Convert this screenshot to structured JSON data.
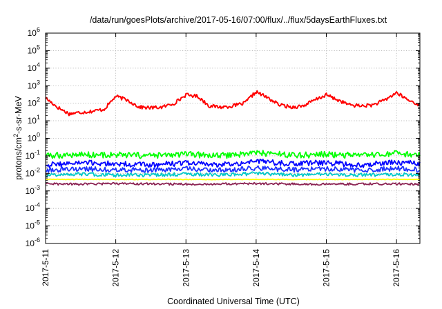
{
  "chart_data": {
    "type": "line",
    "title": "/data/run/goesPlots/archive/2017-05-16/07:00/flux/../flux/5daysEarthFluxes.txt",
    "xlabel": "Coordinated Universal Time (UTC)",
    "ylabel": {
      "pre": "protons/cm",
      "sup": "2",
      "post": "-s-sr-MeV"
    },
    "x_scale": "time",
    "xlim": [
      "2017-05-11",
      "2017-05-16 08:00"
    ],
    "x_ticks": [
      "2017-5-11",
      "2017-5-12",
      "2017-5-13",
      "2017-5-14",
      "2017-5-15",
      "2017-5-16"
    ],
    "y_scale": "log",
    "ylim": [
      1e-06,
      1000000.0
    ],
    "y_ticks": [
      {
        "base": "10",
        "exp": "-6"
      },
      {
        "base": "10",
        "exp": "-5"
      },
      {
        "base": "10",
        "exp": "-4"
      },
      {
        "base": "10",
        "exp": "-3"
      },
      {
        "base": "10",
        "exp": "-2"
      },
      {
        "base": "10",
        "exp": "-1"
      },
      {
        "base": "10",
        "exp": "0"
      },
      {
        "base": "10",
        "exp": "1"
      },
      {
        "base": "10",
        "exp": "2"
      },
      {
        "base": "10",
        "exp": "3"
      },
      {
        "base": "10",
        "exp": "4"
      },
      {
        "base": "10",
        "exp": "5"
      },
      {
        "base": "10",
        "exp": "6"
      }
    ],
    "grid": true,
    "series": [
      {
        "color": "#ff0000",
        "x": [
          "2017-05-11 00:00",
          "2017-05-11 04:00",
          "2017-05-11 08:00",
          "2017-05-11 12:00",
          "2017-05-11 16:00",
          "2017-05-11 20:00",
          "2017-05-12 00:00",
          "2017-05-12 04:00",
          "2017-05-12 08:00",
          "2017-05-12 12:00",
          "2017-05-12 16:00",
          "2017-05-12 20:00",
          "2017-05-13 00:00",
          "2017-05-13 04:00",
          "2017-05-13 08:00",
          "2017-05-13 12:00",
          "2017-05-13 16:00",
          "2017-05-13 20:00",
          "2017-05-14 00:00",
          "2017-05-14 04:00",
          "2017-05-14 08:00",
          "2017-05-14 12:00",
          "2017-05-14 16:00",
          "2017-05-14 20:00",
          "2017-05-15 00:00",
          "2017-05-15 04:00",
          "2017-05-15 08:00",
          "2017-05-15 12:00",
          "2017-05-15 16:00",
          "2017-05-15 20:00",
          "2017-05-16 00:00",
          "2017-05-16 04:00",
          "2017-05-16 08:00"
        ],
        "y": [
          200,
          60,
          25,
          30,
          35,
          45,
          250,
          150,
          60,
          55,
          60,
          100,
          300,
          250,
          70,
          60,
          70,
          100,
          450,
          200,
          80,
          60,
          70,
          150,
          300,
          150,
          80,
          70,
          80,
          150,
          400,
          150,
          80
        ]
      },
      {
        "color": "#00ff00",
        "x": [
          "2017-05-11 00:00",
          "2017-05-11 12:00",
          "2017-05-12 00:00",
          "2017-05-12 12:00",
          "2017-05-13 00:00",
          "2017-05-13 12:00",
          "2017-05-14 00:00",
          "2017-05-14 12:00",
          "2017-05-15 00:00",
          "2017-05-15 12:00",
          "2017-05-16 00:00",
          "2017-05-16 08:00"
        ],
        "y": [
          0.1,
          0.12,
          0.11,
          0.1,
          0.12,
          0.1,
          0.15,
          0.11,
          0.12,
          0.1,
          0.13,
          0.11
        ]
      },
      {
        "color": "#0000ff",
        "x": [
          "2017-05-11 00:00",
          "2017-05-11 12:00",
          "2017-05-12 00:00",
          "2017-05-12 12:00",
          "2017-05-13 00:00",
          "2017-05-13 12:00",
          "2017-05-14 00:00",
          "2017-05-14 12:00",
          "2017-05-15 00:00",
          "2017-05-15 12:00",
          "2017-05-16 00:00",
          "2017-05-16 08:00"
        ],
        "y": [
          0.03,
          0.04,
          0.035,
          0.03,
          0.04,
          0.03,
          0.05,
          0.035,
          0.04,
          0.03,
          0.045,
          0.035
        ]
      },
      {
        "color": "#1e32ff",
        "x": [
          "2017-05-11 00:00",
          "2017-05-11 12:00",
          "2017-05-12 00:00",
          "2017-05-12 12:00",
          "2017-05-13 00:00",
          "2017-05-13 12:00",
          "2017-05-14 00:00",
          "2017-05-14 12:00",
          "2017-05-15 00:00",
          "2017-05-15 12:00",
          "2017-05-16 00:00",
          "2017-05-16 08:00"
        ],
        "y": [
          0.015,
          0.018,
          0.016,
          0.015,
          0.018,
          0.015,
          0.02,
          0.016,
          0.018,
          0.015,
          0.019,
          0.016
        ]
      },
      {
        "color": "#00c8c8",
        "x": [
          "2017-05-11 00:00",
          "2017-05-11 12:00",
          "2017-05-12 00:00",
          "2017-05-12 12:00",
          "2017-05-13 00:00",
          "2017-05-13 12:00",
          "2017-05-14 00:00",
          "2017-05-14 12:00",
          "2017-05-15 00:00",
          "2017-05-15 12:00",
          "2017-05-16 00:00",
          "2017-05-16 08:00"
        ],
        "y": [
          0.008,
          0.009,
          0.008,
          0.008,
          0.009,
          0.008,
          0.01,
          0.008,
          0.009,
          0.008,
          0.009,
          0.008
        ]
      },
      {
        "color": "#ffff00",
        "x": [
          "2017-05-11 00:00",
          "2017-05-11 12:00",
          "2017-05-12 00:00",
          "2017-05-12 12:00",
          "2017-05-13 00:00",
          "2017-05-13 12:00",
          "2017-05-14 00:00",
          "2017-05-14 12:00",
          "2017-05-15 00:00",
          "2017-05-15 12:00",
          "2017-05-16 00:00",
          "2017-05-16 08:00"
        ],
        "y": [
          0.0045,
          0.0045,
          0.0045,
          0.0045,
          0.0045,
          0.0045,
          0.0045,
          0.0045,
          0.0045,
          0.0045,
          0.0045,
          0.0045
        ]
      },
      {
        "color": "#8b2252",
        "x": [
          "2017-05-11 00:00",
          "2017-05-11 12:00",
          "2017-05-12 00:00",
          "2017-05-12 12:00",
          "2017-05-13 00:00",
          "2017-05-13 12:00",
          "2017-05-14 00:00",
          "2017-05-14 12:00",
          "2017-05-15 00:00",
          "2017-05-15 12:00",
          "2017-05-16 00:00",
          "2017-05-16 08:00"
        ],
        "y": [
          0.0025,
          0.0024,
          0.0026,
          0.0025,
          0.0024,
          0.0025,
          0.0026,
          0.0025,
          0.0024,
          0.0025,
          0.0025,
          0.0024
        ]
      }
    ]
  }
}
